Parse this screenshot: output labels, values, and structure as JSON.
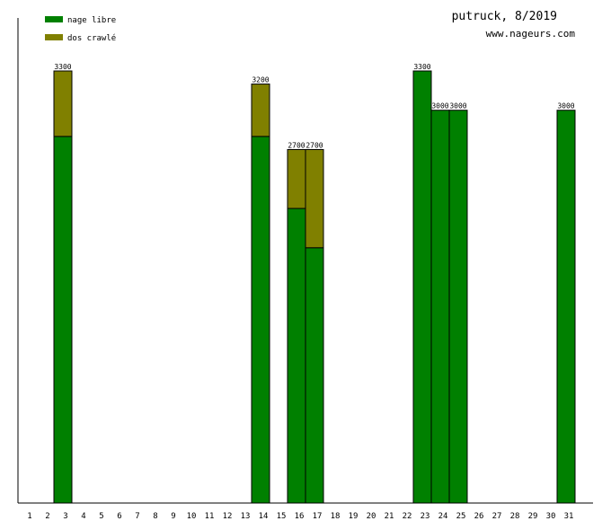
{
  "chart_data": {
    "type": "bar",
    "stacked": true,
    "title": "putruck, 8/2019",
    "subtitle": "www.nageurs.com",
    "categories": [
      "1",
      "2",
      "3",
      "4",
      "5",
      "6",
      "7",
      "8",
      "9",
      "10",
      "11",
      "12",
      "13",
      "14",
      "15",
      "16",
      "17",
      "18",
      "19",
      "20",
      "21",
      "22",
      "23",
      "24",
      "25",
      "26",
      "27",
      "28",
      "29",
      "30",
      "31"
    ],
    "series": [
      {
        "name": "nage libre",
        "color": "#008000",
        "values": [
          0,
          0,
          2800,
          0,
          0,
          0,
          0,
          0,
          0,
          0,
          0,
          0,
          0,
          2800,
          0,
          2250,
          1950,
          0,
          0,
          0,
          0,
          0,
          3300,
          3000,
          3000,
          0,
          0,
          0,
          0,
          0,
          3000
        ]
      },
      {
        "name": "dos crawlé",
        "color": "#808000",
        "values": [
          0,
          0,
          500,
          0,
          0,
          0,
          0,
          0,
          0,
          0,
          0,
          0,
          0,
          400,
          0,
          450,
          750,
          0,
          0,
          0,
          0,
          0,
          0,
          0,
          0,
          0,
          0,
          0,
          0,
          0,
          0
        ]
      }
    ],
    "totals": [
      "",
      "",
      "3300",
      "",
      "",
      "",
      "",
      "",
      "",
      "",
      "",
      "",
      "",
      "3200",
      "",
      "2700",
      "2700",
      "",
      "",
      "",
      "",
      "",
      "3300",
      "3000",
      "3000",
      "",
      "",
      "",
      "",
      "",
      "3000"
    ],
    "ylim": [
      0,
      3300
    ],
    "legend_position": "top-left",
    "grid": false
  }
}
